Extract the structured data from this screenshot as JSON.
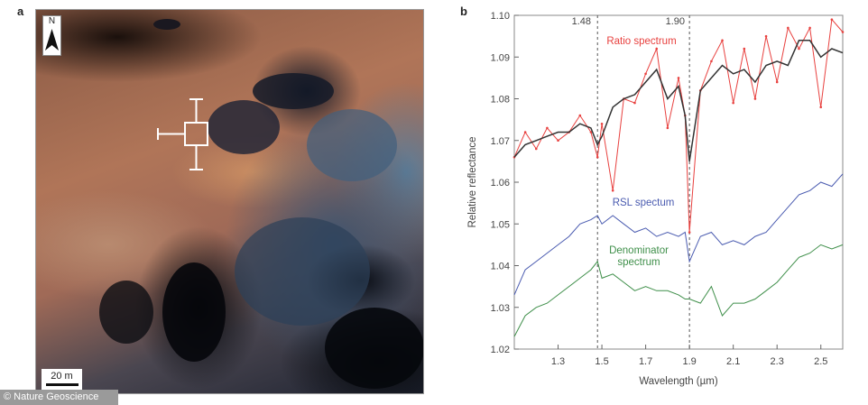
{
  "panel_a": {
    "label": "a",
    "north_label": "N",
    "scale_label": "20 m",
    "copyright": "© Nature Geoscience"
  },
  "panel_b": {
    "label": "b"
  },
  "chart_data": {
    "type": "line",
    "xlabel": "Wavelength (µm)",
    "ylabel": "Relative reflectance",
    "xlim": [
      1.1,
      2.6
    ],
    "ylim": [
      1.02,
      1.1
    ],
    "xticks": [
      "1.3",
      "1.5",
      "1.7",
      "1.9",
      "2.1",
      "2.3",
      "2.5"
    ],
    "yticks": [
      "1.02",
      "1.03",
      "1.04",
      "1.05",
      "1.06",
      "1.07",
      "1.08",
      "1.09",
      "1.10"
    ],
    "grid": false,
    "vlines": [
      {
        "x": 1.48,
        "label": "1.48",
        "style": "dashed"
      },
      {
        "x": 1.9,
        "label": "1.90",
        "style": "dashed"
      }
    ],
    "x": [
      1.1,
      1.15,
      1.2,
      1.25,
      1.3,
      1.35,
      1.4,
      1.45,
      1.48,
      1.5,
      1.55,
      1.6,
      1.65,
      1.7,
      1.75,
      1.8,
      1.85,
      1.88,
      1.9,
      1.95,
      2.0,
      2.05,
      2.1,
      2.15,
      2.2,
      2.25,
      2.3,
      2.35,
      2.4,
      2.45,
      2.5,
      2.55,
      2.6
    ],
    "series": [
      {
        "name": "Ratio spectrum",
        "role": "raw",
        "color": "#e8413f",
        "values": [
          1.066,
          1.072,
          1.068,
          1.073,
          1.07,
          1.072,
          1.076,
          1.072,
          1.066,
          1.074,
          1.058,
          1.08,
          1.079,
          1.086,
          1.092,
          1.073,
          1.085,
          1.076,
          1.048,
          1.082,
          1.089,
          1.094,
          1.079,
          1.092,
          1.08,
          1.095,
          1.084,
          1.097,
          1.092,
          1.097,
          1.078,
          1.099,
          1.096
        ]
      },
      {
        "name": "",
        "role": "fit",
        "color": "#333333",
        "values": [
          1.066,
          1.069,
          1.07,
          1.071,
          1.072,
          1.072,
          1.074,
          1.073,
          1.069,
          1.071,
          1.078,
          1.08,
          1.081,
          1.084,
          1.087,
          1.08,
          1.083,
          1.076,
          1.065,
          1.082,
          1.085,
          1.088,
          1.086,
          1.087,
          1.084,
          1.088,
          1.089,
          1.088,
          1.094,
          1.094,
          1.09,
          1.092,
          1.091
        ]
      },
      {
        "name": "RSL spectum",
        "role": "rsl",
        "color": "#4a5bb0",
        "values": [
          1.033,
          1.039,
          1.041,
          1.043,
          1.045,
          1.047,
          1.05,
          1.051,
          1.052,
          1.05,
          1.052,
          1.05,
          1.048,
          1.049,
          1.047,
          1.048,
          1.047,
          1.048,
          1.041,
          1.047,
          1.048,
          1.045,
          1.046,
          1.045,
          1.047,
          1.048,
          1.051,
          1.054,
          1.057,
          1.058,
          1.06,
          1.059,
          1.062
        ]
      },
      {
        "name": "Denominator spectrum",
        "role": "denominator",
        "color": "#3f8f4a",
        "values": [
          1.023,
          1.028,
          1.03,
          1.031,
          1.033,
          1.035,
          1.037,
          1.039,
          1.041,
          1.037,
          1.038,
          1.036,
          1.034,
          1.035,
          1.034,
          1.034,
          1.033,
          1.032,
          1.032,
          1.031,
          1.035,
          1.028,
          1.031,
          1.031,
          1.032,
          1.034,
          1.036,
          1.039,
          1.042,
          1.043,
          1.045,
          1.044,
          1.045
        ]
      }
    ],
    "annotations": [
      {
        "text": "Ratio spectrum",
        "color": "#e8413f"
      },
      {
        "text": "RSL spectum",
        "color": "#4a5bb0"
      },
      {
        "text": "Denominator",
        "color": "#3f8f4a"
      },
      {
        "text": "spectrum",
        "color": "#3f8f4a"
      }
    ]
  }
}
